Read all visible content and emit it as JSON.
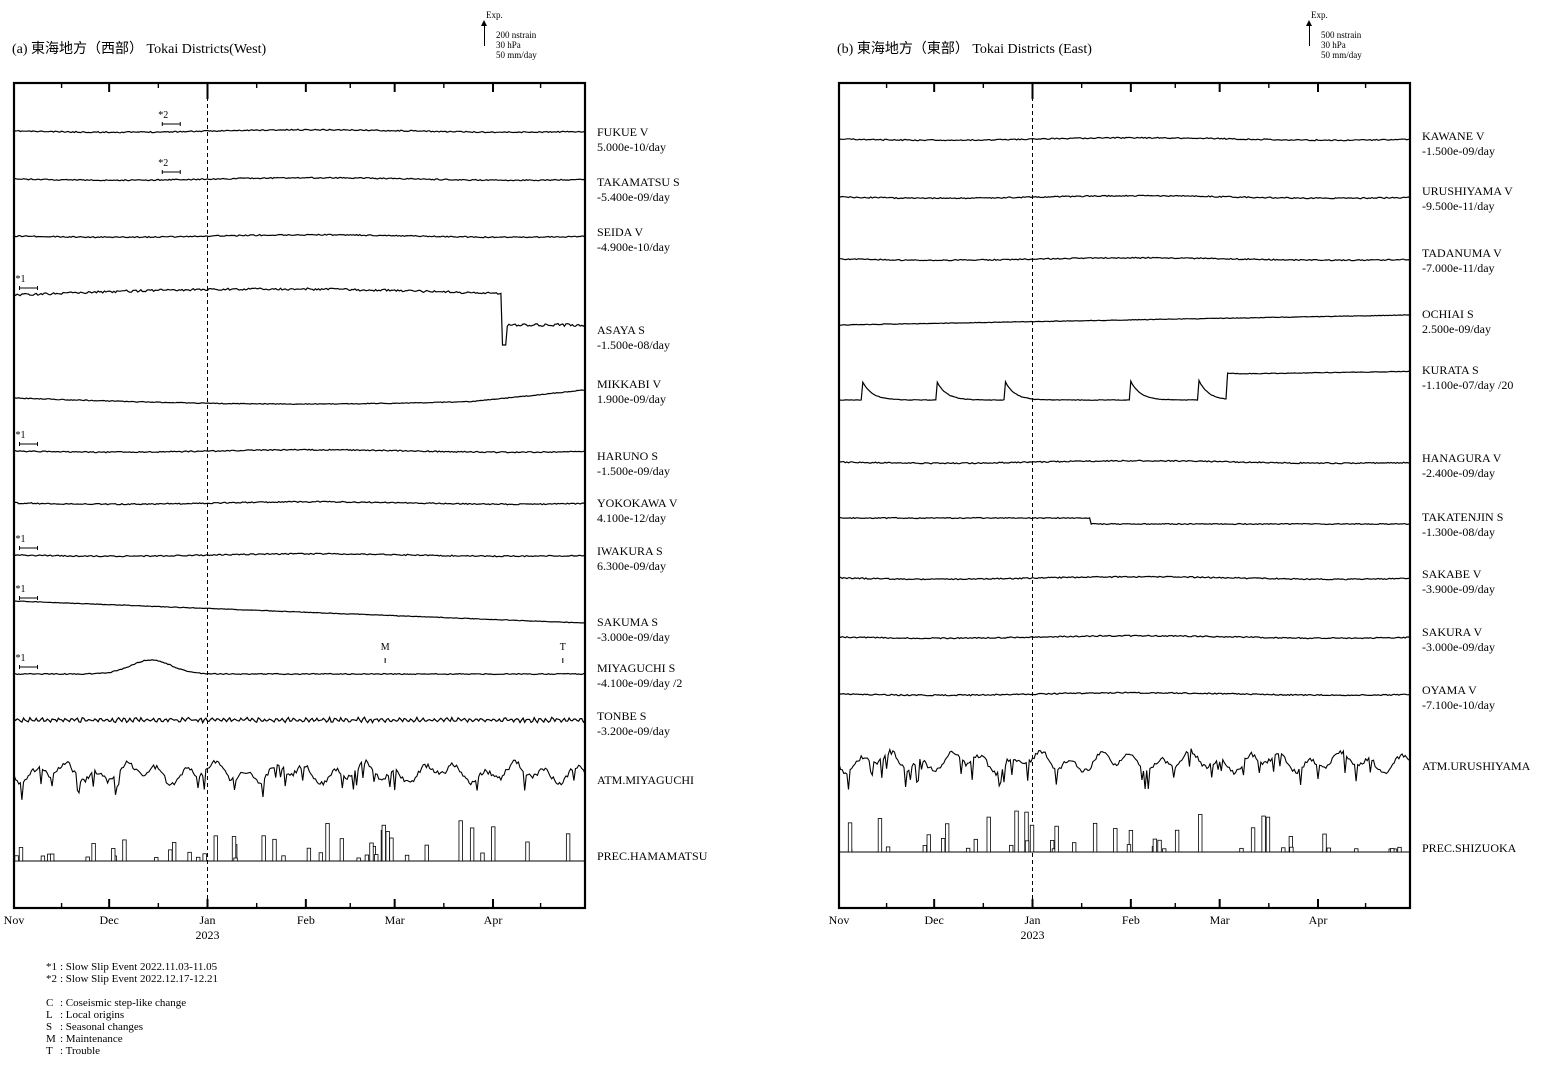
{
  "chart_data": [
    {
      "type": "line",
      "title": "(a) 東海地方（西部） Tokai Districts(West)",
      "scale": {
        "exp": "Exp.",
        "lines": [
          "200 nstrain",
          "30 hPa",
          "50 mm/day"
        ]
      },
      "x_months": [
        "Nov",
        "Dec",
        "Jan",
        "Feb",
        "Mar",
        "Apr"
      ],
      "x_year": "2023",
      "x_range": [
        "2022-11-01",
        "2023-04-30"
      ],
      "marker_date": "2023-01-01",
      "series": [
        {
          "name": "FUKUE V",
          "rate": "5.000e-10/day",
          "trend": "flat"
        },
        {
          "name": "TAKAMATSU S",
          "rate": "-5.400e-09/day",
          "trend": "flat"
        },
        {
          "name": "SEIDA V",
          "rate": "-4.900e-10/day",
          "trend": "flat"
        },
        {
          "name": "ASAYA S",
          "rate": "-1.500e-08/day",
          "trend": "hump_drop"
        },
        {
          "name": "MIKKABI V",
          "rate": "1.900e-09/day",
          "trend": "dip"
        },
        {
          "name": "HARUNO S",
          "rate": "-1.500e-09/day",
          "trend": "flat"
        },
        {
          "name": "YOKOKAWA V",
          "rate": "4.100e-12/day",
          "trend": "flat"
        },
        {
          "name": "IWAKURA S",
          "rate": "6.300e-09/day",
          "trend": "flat"
        },
        {
          "name": "SAKUMA S",
          "rate": "-3.000e-09/day",
          "trend": "decline"
        },
        {
          "name": "MIYAGUCHI S",
          "rate": "-4.100e-09/day /2",
          "trend": "peak"
        },
        {
          "name": "TONBE S",
          "rate": "-3.200e-09/day",
          "trend": "noisy"
        },
        {
          "name": "ATM.MIYAGUCHI",
          "rate": "",
          "trend": "atm"
        },
        {
          "name": "PREC.HAMAMATSU",
          "rate": "",
          "trend": "prec"
        }
      ],
      "annotations": [
        {
          "text": "*2",
          "series": "FUKUE V",
          "date": "2022-12-19"
        },
        {
          "text": "*2",
          "series": "TAKAMATSU S",
          "date": "2022-12-19"
        },
        {
          "text": "*1",
          "series": "ASAYA S",
          "date": "2022-11-04"
        },
        {
          "text": "*1",
          "series": "HARUNO S",
          "date": "2022-11-04"
        },
        {
          "text": "*1",
          "series": "IWAKURA S",
          "date": "2022-11-04"
        },
        {
          "text": "*1",
          "series": "SAKUMA S",
          "date": "2022-11-04"
        },
        {
          "text": "*1",
          "series": "MIYAGUCHI S",
          "date": "2022-11-04"
        },
        {
          "text": "M",
          "series": "MIYAGUCHI S",
          "date": "2023-02-26"
        },
        {
          "text": "T",
          "series": "MIYAGUCHI S",
          "date": "2023-04-23"
        }
      ]
    },
    {
      "type": "line",
      "title": "(b) 東海地方（東部） Tokai Districts (East)",
      "scale": {
        "exp": "Exp.",
        "lines": [
          "500 nstrain",
          "30 hPa",
          "50 mm/day"
        ]
      },
      "x_months": [
        "Nov",
        "Dec",
        "Jan",
        "Feb",
        "Mar",
        "Apr"
      ],
      "x_year": "2023",
      "x_range": [
        "2022-11-01",
        "2023-04-30"
      ],
      "marker_date": "2023-01-01",
      "series": [
        {
          "name": "KAWANE V",
          "rate": "-1.500e-09/day",
          "trend": "flat"
        },
        {
          "name": "URUSHIYAMA V",
          "rate": "-9.500e-11/day",
          "trend": "flat"
        },
        {
          "name": "TADANUMA V",
          "rate": "-7.000e-11/day",
          "trend": "flat"
        },
        {
          "name": "OCHIAI S",
          "rate": "2.500e-09/day",
          "trend": "rise"
        },
        {
          "name": "KURATA S",
          "rate": "-1.100e-07/day /20",
          "trend": "spikes"
        },
        {
          "name": "HANAGURA V",
          "rate": "-2.400e-09/day",
          "trend": "flat"
        },
        {
          "name": "TAKATENJIN S",
          "rate": "-1.300e-08/day",
          "trend": "step_down"
        },
        {
          "name": "SAKABE V",
          "rate": "-3.900e-09/day",
          "trend": "flat"
        },
        {
          "name": "SAKURA V",
          "rate": "-3.000e-09/day",
          "trend": "flat"
        },
        {
          "name": "OYAMA V",
          "rate": "-7.100e-10/day",
          "trend": "flat"
        },
        {
          "name": "ATM.URUSHIYAMA",
          "rate": "",
          "trend": "atm"
        },
        {
          "name": "PREC.SHIZUOKA",
          "rate": "",
          "trend": "prec"
        }
      ],
      "annotations": []
    }
  ],
  "notes": {
    "events": [
      {
        "key": "*1",
        "text": ": Slow Slip Event  2022.11.03-11.05"
      },
      {
        "key": "*2",
        "text": ": Slow Slip Event  2022.12.17-12.21"
      }
    ],
    "codes": [
      {
        "key": "C",
        "text": ": Coseismic step-like change"
      },
      {
        "key": "L",
        "text": ": Local origins"
      },
      {
        "key": "S",
        "text": ": Seasonal changes"
      },
      {
        "key": "M",
        "text": ":  Maintenance"
      },
      {
        "key": "T",
        "text": ": Trouble"
      }
    ]
  }
}
